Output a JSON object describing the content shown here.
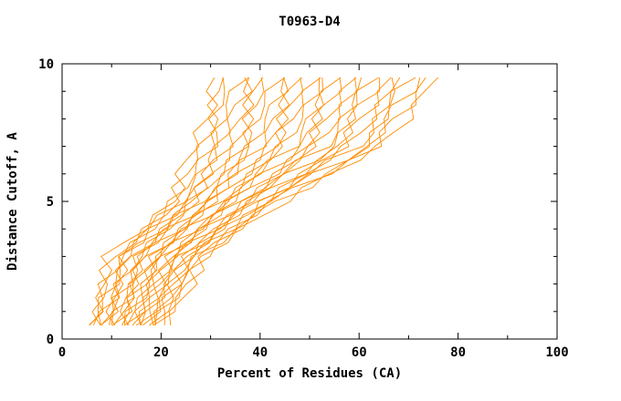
{
  "chart_data": {
    "type": "line",
    "title": "T0963-D4",
    "xlabel": "Percent of Residues (CA)",
    "ylabel": "Distance Cutoff, A",
    "xlim": [
      0,
      100
    ],
    "ylim": [
      0,
      10
    ],
    "x_major_ticks": [
      0,
      20,
      40,
      60,
      80,
      100
    ],
    "x_minor_step": 10,
    "y_major_ticks": [
      0,
      5,
      10
    ],
    "y_minor_step": 1,
    "grid": "off",
    "legend": "none",
    "line_color": "#ff8c00",
    "frame_color": "#000000",
    "cutoff_range": [
      0.5,
      9.5
    ],
    "cutoff_step": 0.5,
    "anchor_cutoffs": [
      0.5,
      3,
      5,
      7,
      9.5
    ],
    "series": [
      [
        5.5,
        10.0,
        22.0,
        27.0,
        31.0
      ],
      [
        6.0,
        10.7,
        22.8,
        28.3,
        32.5
      ],
      [
        6.5,
        11.3,
        23.5,
        29.6,
        34.0
      ],
      [
        7.1,
        12.0,
        24.3,
        30.9,
        35.6
      ],
      [
        7.6,
        12.6,
        25.0,
        32.2,
        37.1
      ],
      [
        8.1,
        13.3,
        25.8,
        33.6,
        38.6
      ],
      [
        8.6,
        13.9,
        26.6,
        34.9,
        40.1
      ],
      [
        9.1,
        14.6,
        27.3,
        36.2,
        41.6
      ],
      [
        9.6,
        15.2,
        28.1,
        37.5,
        43.1
      ],
      [
        10.2,
        15.9,
        28.8,
        38.8,
        44.7
      ],
      [
        10.7,
        16.6,
        29.6,
        40.1,
        46.2
      ],
      [
        11.2,
        17.2,
        30.3,
        41.4,
        47.7
      ],
      [
        11.7,
        17.9,
        31.1,
        42.7,
        49.2
      ],
      [
        12.2,
        18.5,
        31.9,
        44.0,
        50.7
      ],
      [
        12.7,
        19.2,
        32.6,
        45.3,
        52.2
      ],
      [
        13.3,
        19.8,
        33.4,
        46.7,
        53.8
      ],
      [
        13.8,
        20.5,
        34.1,
        48.0,
        55.3
      ],
      [
        14.3,
        21.1,
        34.9,
        49.3,
        56.8
      ],
      [
        14.8,
        21.8,
        35.7,
        50.6,
        58.3
      ],
      [
        15.3,
        22.4,
        36.4,
        51.9,
        59.8
      ],
      [
        15.8,
        23.1,
        37.2,
        53.2,
        61.3
      ],
      [
        16.4,
        23.8,
        37.9,
        54.5,
        62.9
      ],
      [
        16.9,
        24.4,
        38.7,
        55.8,
        64.4
      ],
      [
        17.4,
        25.1,
        39.4,
        57.1,
        65.9
      ],
      [
        17.9,
        25.7,
        40.2,
        58.4,
        67.4
      ],
      [
        18.4,
        26.4,
        41.0,
        59.8,
        68.9
      ],
      [
        19.0,
        27.0,
        41.7,
        61.1,
        70.4
      ],
      [
        19.5,
        27.7,
        42.5,
        62.4,
        72.0
      ],
      [
        20.0,
        28.3,
        43.2,
        63.7,
        73.5
      ],
      [
        20.5,
        29.0,
        44.0,
        65.0,
        75.0
      ]
    ]
  }
}
